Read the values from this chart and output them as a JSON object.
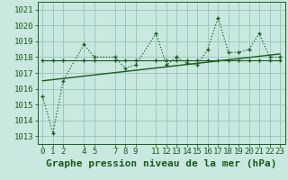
{
  "title": "Graphe pression niveau de la mer (hPa)",
  "bg_color": "#c8e8e0",
  "grid_color": "#a0c8c0",
  "line_color": "#1a5c1a",
  "x_ticks": [
    0,
    1,
    2,
    4,
    5,
    7,
    8,
    9,
    11,
    12,
    13,
    14,
    15,
    16,
    17,
    18,
    19,
    20,
    21,
    22,
    23
  ],
  "x_tick_labels": [
    "0",
    "1",
    "2",
    "4",
    "5",
    "7",
    "8",
    "9",
    "11",
    "12",
    "13",
    "14",
    "15",
    "16",
    "17",
    "18",
    "19",
    "20",
    "21",
    "22",
    "23"
  ],
  "ylim": [
    1012.5,
    1021.5
  ],
  "yticks": [
    1013,
    1014,
    1015,
    1016,
    1017,
    1018,
    1019,
    1020,
    1021
  ],
  "series1_x": [
    0,
    1,
    2,
    4,
    5,
    7,
    8,
    9,
    11,
    12,
    13,
    14,
    15,
    16,
    17,
    18,
    19,
    20,
    21,
    22,
    23
  ],
  "series1_y": [
    1015.5,
    1013.2,
    1016.5,
    1018.8,
    1018.0,
    1018.0,
    1017.3,
    1017.5,
    1019.5,
    1017.5,
    1018.0,
    1017.6,
    1017.5,
    1018.5,
    1020.5,
    1018.3,
    1018.3,
    1018.5,
    1019.5,
    1018.0,
    1018.0
  ],
  "series2_x": [
    0,
    1,
    2,
    4,
    5,
    7,
    8,
    9,
    11,
    12,
    13,
    14,
    15,
    16,
    17,
    18,
    19,
    20,
    21,
    22,
    23
  ],
  "series2_y": [
    1017.8,
    1017.8,
    1017.8,
    1017.8,
    1017.8,
    1017.8,
    1017.8,
    1017.8,
    1017.8,
    1017.8,
    1017.8,
    1017.8,
    1017.8,
    1017.8,
    1017.8,
    1017.8,
    1017.8,
    1017.8,
    1017.8,
    1017.8,
    1017.8
  ],
  "trend_x": [
    0,
    23
  ],
  "trend_y": [
    1016.5,
    1018.2
  ],
  "xlabel_fontsize": 8,
  "tick_fontsize": 6.5
}
